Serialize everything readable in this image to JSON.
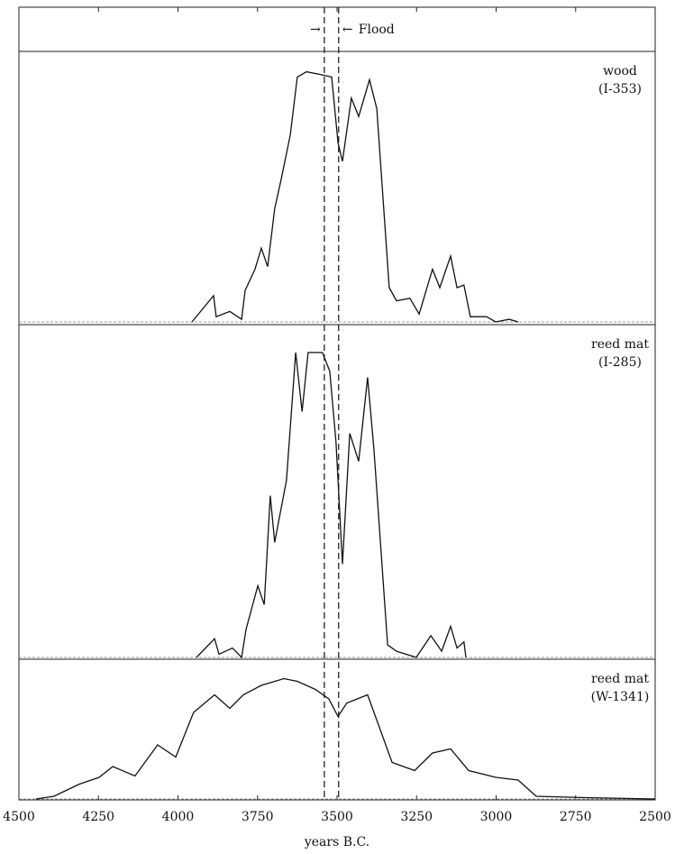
{
  "chart_data": {
    "type": "line",
    "xlabel": "years B.C.",
    "xlim": [
      4500,
      2500
    ],
    "xticks": [
      4500,
      4250,
      4000,
      3750,
      3500,
      3250,
      3000,
      2750,
      2500
    ],
    "markers": [
      3540,
      3495
    ],
    "annotation": {
      "arrows": [
        "→",
        "←"
      ],
      "text": "Flood"
    },
    "color": "#111111",
    "panels": [
      {
        "label": [
          "wood",
          "(I-353)"
        ],
        "ylim": [
          0,
          1
        ],
        "x": [
          3956,
          3888,
          3880,
          3837,
          3800,
          3789,
          3758,
          3738,
          3718,
          3696,
          3676,
          3647,
          3625,
          3596,
          3554,
          3517,
          3497,
          3483,
          3455,
          3432,
          3398,
          3375,
          3336,
          3313,
          3271,
          3242,
          3200,
          3177,
          3143,
          3123,
          3101,
          3081,
          3030,
          3001,
          2959,
          2931
        ],
        "values": [
          0,
          0.1,
          0.02,
          0.04,
          0.01,
          0.12,
          0.2,
          0.28,
          0.21,
          0.43,
          0.54,
          0.71,
          0.93,
          0.95,
          0.94,
          0.93,
          0.68,
          0.61,
          0.85,
          0.78,
          0.92,
          0.81,
          0.13,
          0.08,
          0.09,
          0.03,
          0.2,
          0.13,
          0.25,
          0.13,
          0.14,
          0.02,
          0.02,
          0,
          0.01,
          0
        ]
      },
      {
        "label": [
          "reed mat",
          "(I-285)"
        ],
        "ylim": [
          0,
          1
        ],
        "x": [
          3942,
          3885,
          3871,
          3829,
          3800,
          3786,
          3749,
          3729,
          3710,
          3696,
          3659,
          3630,
          3610,
          3591,
          3546,
          3523,
          3503,
          3483,
          3460,
          3432,
          3404,
          3384,
          3341,
          3313,
          3251,
          3205,
          3171,
          3143,
          3123,
          3101,
          3095
        ],
        "values": [
          0,
          0.06,
          0.01,
          0.03,
          0,
          0.09,
          0.23,
          0.17,
          0.52,
          0.37,
          0.57,
          0.98,
          0.79,
          0.98,
          0.98,
          0.92,
          0.69,
          0.3,
          0.72,
          0.63,
          0.9,
          0.67,
          0.04,
          0.02,
          0,
          0.07,
          0.02,
          0.1,
          0.03,
          0.05,
          0
        ]
      },
      {
        "label": [
          "reed mat",
          "(W-1341)"
        ],
        "ylim": [
          0,
          1
        ],
        "x": [
          4446,
          4390,
          4310,
          4248,
          4205,
          4135,
          4064,
          4007,
          3951,
          3885,
          3837,
          3795,
          3738,
          3667,
          3625,
          3568,
          3526,
          3497,
          3469,
          3404,
          3327,
          3256,
          3200,
          3143,
          3086,
          3001,
          2931,
          2874,
          2718,
          2500
        ],
        "values": [
          0,
          0.02,
          0.11,
          0.16,
          0.24,
          0.17,
          0.4,
          0.31,
          0.64,
          0.77,
          0.67,
          0.77,
          0.84,
          0.89,
          0.87,
          0.81,
          0.74,
          0.61,
          0.71,
          0.77,
          0.27,
          0.21,
          0.34,
          0.37,
          0.21,
          0.16,
          0.14,
          0.02,
          0.01,
          0
        ]
      }
    ]
  }
}
